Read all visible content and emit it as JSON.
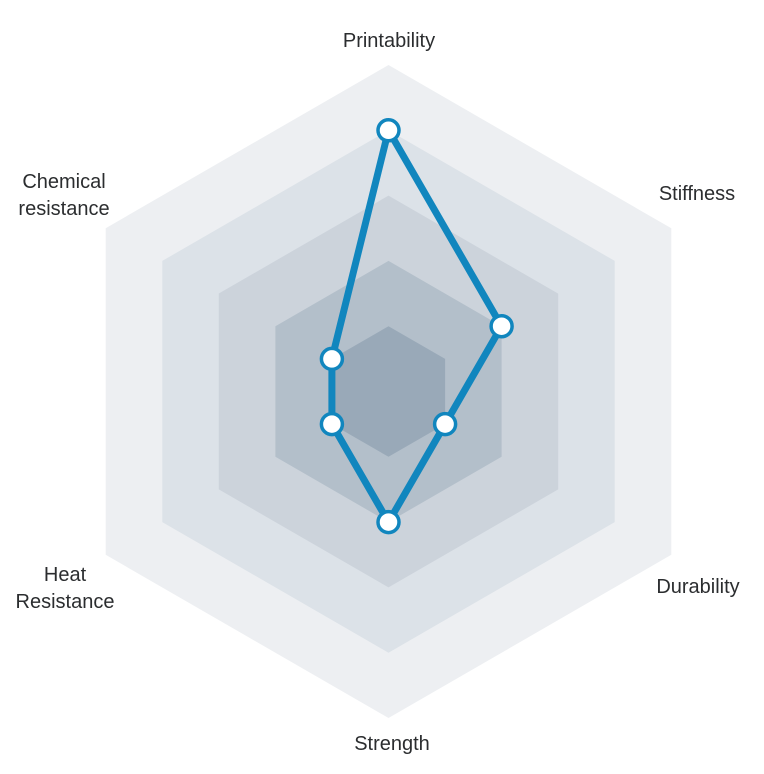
{
  "page": {
    "background_color": "#ffffff"
  },
  "chart_data": {
    "type": "radar",
    "shape": "hexagon",
    "categories": [
      "Printability",
      "Stiffness",
      "Durability",
      "Strength",
      "Heat Resistance",
      "Chemical resistance"
    ],
    "axis_labels": [
      {
        "id": "printability",
        "lines": [
          "Printability"
        ]
      },
      {
        "id": "stiffness",
        "lines": [
          "Stiffness"
        ]
      },
      {
        "id": "durability",
        "lines": [
          "Durability"
        ]
      },
      {
        "id": "strength",
        "lines": [
          "Strength"
        ]
      },
      {
        "id": "heat-resistance",
        "lines": [
          "Heat",
          "Resistance"
        ]
      },
      {
        "id": "chemical-resistance",
        "lines": [
          "Chemical",
          "resistance"
        ]
      }
    ],
    "series": [
      {
        "name": "material-profile",
        "values": [
          4,
          2,
          1,
          2,
          1,
          1
        ],
        "line_color": "#1186be",
        "marker_fill": "#ffffff",
        "marker_stroke": "#1186be"
      }
    ],
    "scale": {
      "min": 0,
      "max": 5,
      "rings": 5
    },
    "grid": {
      "ring_colors_outer_to_inner": [
        "#edeff2",
        "#dce2e8",
        "#ccd3db",
        "#b3bfca",
        "#99a9b8"
      ],
      "axis_lines_visible": false,
      "tick_labels_visible": false
    },
    "title": "",
    "legend": {
      "visible": false
    },
    "label_color": "#2b2d2f"
  }
}
